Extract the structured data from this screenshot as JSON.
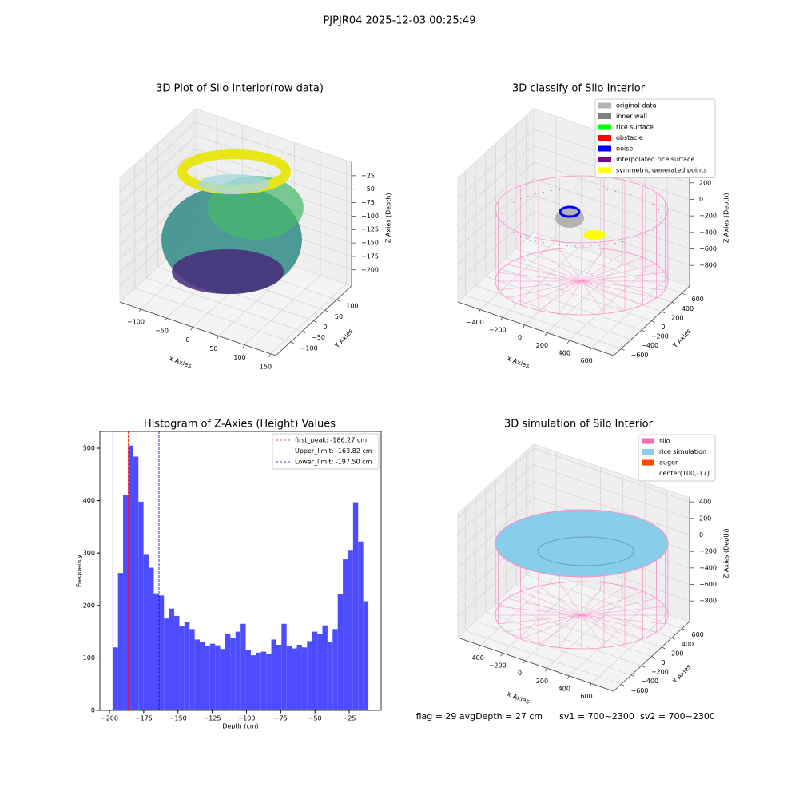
{
  "title": "PJPJR04 2025-12-03 00:25:49",
  "footer": [
    "flag = 29",
    "avgDepth = 27 cm",
    "sv1 = 700~2300",
    "sv2 = 700~2300"
  ],
  "chart_data": [
    {
      "type": "scatter3d",
      "title": "3D Plot of Silo Interior(row data)",
      "xlabel": "X Axies",
      "ylabel": "Y Axies",
      "zlabel": "Z Axies (Depth)",
      "xlim": [
        -140,
        160
      ],
      "ylim": [
        -165,
        165
      ],
      "zlim": [
        -230,
        0
      ],
      "xticks": [
        {
          "value": -100,
          "label": "−100"
        },
        {
          "value": -50,
          "label": "−50"
        },
        0,
        50,
        100,
        150
      ],
      "yticks": [
        {
          "value": -100,
          "label": "−100"
        },
        {
          "value": -50,
          "label": "−50"
        },
        0,
        50,
        100
      ],
      "zticks": [
        {
          "value": -200,
          "label": "−200"
        },
        {
          "value": -175,
          "label": "−175"
        },
        {
          "value": -150,
          "label": "−150"
        },
        {
          "value": -125,
          "label": "−125"
        },
        {
          "value": -100,
          "label": "−100"
        },
        {
          "value": -75,
          "label": "−75"
        },
        {
          "value": -50,
          "label": "−50"
        },
        {
          "value": -25,
          "label": "−25"
        }
      ]
    },
    {
      "type": "scatter3d",
      "title": "3D classify of Silo Interior",
      "xlabel": "X Axies",
      "ylabel": "Y Axies",
      "zlabel": "Z Axies (Depth)",
      "xlim": [
        -600,
        800
      ],
      "ylim": [
        -750,
        750
      ],
      "zlim": [
        -1050,
        450
      ],
      "xticks": [
        {
          "value": -400,
          "label": "−400"
        },
        {
          "value": -200,
          "label": "−200"
        },
        0,
        200,
        400,
        600
      ],
      "yticks": [
        {
          "value": -600,
          "label": "−600"
        },
        {
          "value": -400,
          "label": "−400"
        },
        {
          "value": -200,
          "label": "−200"
        },
        0,
        200,
        400,
        600
      ],
      "zticks": [
        {
          "value": -800,
          "label": "−800"
        },
        {
          "value": -600,
          "label": "−600"
        },
        {
          "value": -400,
          "label": "−400"
        },
        {
          "value": -200,
          "label": "−200"
        },
        0,
        200
      ],
      "legend": [
        {
          "name": "original data",
          "color": "#b3b3b3"
        },
        {
          "name": "inner wall",
          "color": "#808080"
        },
        {
          "name": "rice surface",
          "color": "#00ff00"
        },
        {
          "name": "obstacle",
          "color": "#ff0000"
        },
        {
          "name": "noise",
          "color": "#0000ff"
        },
        {
          "name": "interpolated rice surface",
          "color": "#800080"
        },
        {
          "name": "symmetric generated points",
          "color": "#ffff00"
        }
      ]
    },
    {
      "type": "histogram",
      "title": "Histogram of Z-Axies (Height) Values",
      "xlabel": "Depth (cm)",
      "ylabel": "Frequency",
      "color": "#4d4dff",
      "bins": [
        -197.5,
        -193.77,
        -190.04,
        -186.31,
        -182.58,
        -178.85,
        -175.12,
        -171.39,
        -167.66,
        -163.93,
        -160.2,
        -156.47,
        -152.74,
        -149.01,
        -145.28,
        -141.55,
        -137.82,
        -134.09,
        -130.36,
        -126.63,
        -122.9,
        -119.17,
        -115.44,
        -111.71,
        -107.98,
        -104.25,
        -100.52,
        -96.79,
        -93.06,
        -89.33,
        -85.6,
        -81.87,
        -78.14,
        -74.41,
        -70.68,
        -66.95,
        -63.22,
        -59.49,
        -55.76,
        -52.03,
        -48.3,
        -44.57,
        -40.84,
        -37.11,
        -33.38,
        -29.65,
        -25.92,
        -22.19,
        -18.46,
        -14.73,
        -11.0
      ],
      "values": [
        120,
        262,
        410,
        505,
        484,
        398,
        298,
        272,
        223,
        219,
        175,
        194,
        180,
        160,
        168,
        155,
        135,
        130,
        122,
        127,
        124,
        117,
        145,
        138,
        150,
        165,
        115,
        105,
        110,
        112,
        108,
        135,
        125,
        165,
        122,
        118,
        125,
        120,
        132,
        150,
        145,
        162,
        130,
        155,
        222,
        288,
        306,
        397,
        322,
        208
      ],
      "lines": [
        {
          "name": "first_peak: -186.27 cm",
          "value": -186.27,
          "color": "#ff0000"
        },
        {
          "name": "Upper_limit: -163.82 cm",
          "value": -163.82,
          "color": "#0000cc"
        },
        {
          "name": "Lower_limit: -197.50 cm",
          "value": -197.5,
          "color": "#0000cc"
        }
      ],
      "xlim": [
        -207,
        -1.7
      ],
      "ylim": [
        0,
        532
      ],
      "xticks": [
        {
          "value": -200,
          "label": "−200"
        },
        {
          "value": -175,
          "label": "−175"
        },
        {
          "value": -150,
          "label": "−150"
        },
        {
          "value": -125,
          "label": "−125"
        },
        {
          "value": -100,
          "label": "−100"
        },
        {
          "value": -75,
          "label": "−75"
        },
        {
          "value": -50,
          "label": "−50"
        },
        {
          "value": -25,
          "label": "−25"
        }
      ],
      "yticks": [
        0,
        100,
        200,
        300,
        400,
        500
      ]
    },
    {
      "type": "surface3d",
      "title": "3D simulation of Silo Interior",
      "xlabel": "X Axies",
      "ylabel": "Y Axies",
      "zlabel": "Z Axies (Depth)",
      "xlim": [
        -600,
        800
      ],
      "ylim": [
        -750,
        750
      ],
      "zlim": [
        -1050,
        450
      ],
      "xticks": [
        {
          "value": -400,
          "label": "−400"
        },
        {
          "value": -200,
          "label": "−200"
        },
        0,
        200,
        400,
        600
      ],
      "yticks": [
        {
          "value": -600,
          "label": "−600"
        },
        {
          "value": -400,
          "label": "−400"
        },
        {
          "value": -200,
          "label": "−200"
        },
        0,
        200,
        400,
        600
      ],
      "zticks": [
        {
          "value": -800,
          "label": "−800"
        },
        {
          "value": -600,
          "label": "−600"
        },
        {
          "value": -400,
          "label": "−400"
        },
        {
          "value": -200,
          "label": "−200"
        },
        0,
        200,
        400
      ],
      "legend": [
        {
          "name": "silo",
          "color": "#ff69b4"
        },
        {
          "name": "rice simulation",
          "color": "#87ceeb"
        },
        {
          "name": "auger",
          "color": "#ff4500"
        },
        {
          "name": "center(100,-17)"
        }
      ]
    }
  ]
}
